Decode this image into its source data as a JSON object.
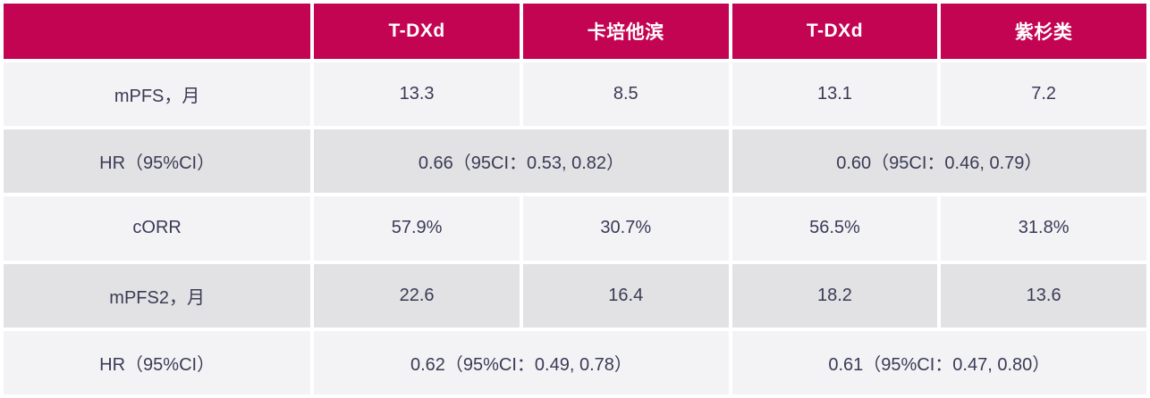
{
  "table": {
    "header": {
      "corner": "",
      "columns": [
        "T-DXd",
        "卡培他滨",
        "T-DXd",
        "紫杉类"
      ]
    },
    "rows": [
      {
        "label": "mPFS，月",
        "values": [
          "13.3",
          "8.5",
          "13.1",
          "7.2"
        ]
      },
      {
        "label": "HR（95%CI）",
        "merged_values": [
          "0.66（95CI：0.53, 0.82）",
          "0.60（95CI：0.46, 0.79）"
        ]
      },
      {
        "label": "cORR",
        "values": [
          "57.9%",
          "30.7%",
          "56.5%",
          "31.8%"
        ]
      },
      {
        "label": "mPFS2，月",
        "values": [
          "22.6",
          "16.4",
          "18.2",
          "13.6"
        ]
      },
      {
        "label": "HR（95%CI）",
        "merged_values": [
          "0.62（95%CI：0.49, 0.78）",
          "0.61（95%CI：0.47, 0.80）"
        ]
      }
    ],
    "colors": {
      "header_bg": "#C30452",
      "header_text": "#FFFFFF",
      "row_light": "#F3F3F6",
      "row_gray": "#E2E2E4",
      "body_text": "#3A3A56",
      "divider": "#FFFFFF"
    }
  },
  "chart_data": {
    "type": "table",
    "title": "",
    "column_headers": [
      "",
      "T-DXd",
      "卡培他滨",
      "T-DXd",
      "紫杉类"
    ],
    "rows": [
      [
        "mPFS，月",
        "13.3",
        "8.5",
        "13.1",
        "7.2"
      ],
      [
        "HR（95%CI）",
        "0.66（95CI：0.53, 0.82）",
        "0.66（95CI：0.53, 0.82）",
        "0.60（95CI：0.46, 0.79）",
        "0.60（95CI：0.46, 0.79）"
      ],
      [
        "cORR",
        "57.9%",
        "30.7%",
        "56.5%",
        "31.8%"
      ],
      [
        "mPFS2，月",
        "22.6",
        "16.4",
        "18.2",
        "13.6"
      ],
      [
        "HR（95%CI）",
        "0.62（95%CI：0.49, 0.78）",
        "0.62（95%CI：0.49, 0.78）",
        "0.61（95%CI：0.47, 0.80）",
        "0.61（95%CI：0.47, 0.80）"
      ]
    ],
    "merged_cells": [
      {
        "row": 1,
        "cols": [
          1,
          2
        ],
        "value": "0.66（95CI：0.53, 0.82）"
      },
      {
        "row": 1,
        "cols": [
          3,
          4
        ],
        "value": "0.60（95CI：0.46, 0.79）"
      },
      {
        "row": 4,
        "cols": [
          1,
          2
        ],
        "value": "0.62（95%CI：0.49, 0.78）"
      },
      {
        "row": 4,
        "cols": [
          3,
          4
        ],
        "value": "0.61（95%CI：0.47, 0.80）"
      }
    ],
    "layout_hints": {
      "header_bg": "#C30452",
      "alternating_row_colors": [
        "#F3F3F6",
        "#E2E2E4"
      ],
      "cell_gap_color": "#FFFFFF"
    }
  }
}
